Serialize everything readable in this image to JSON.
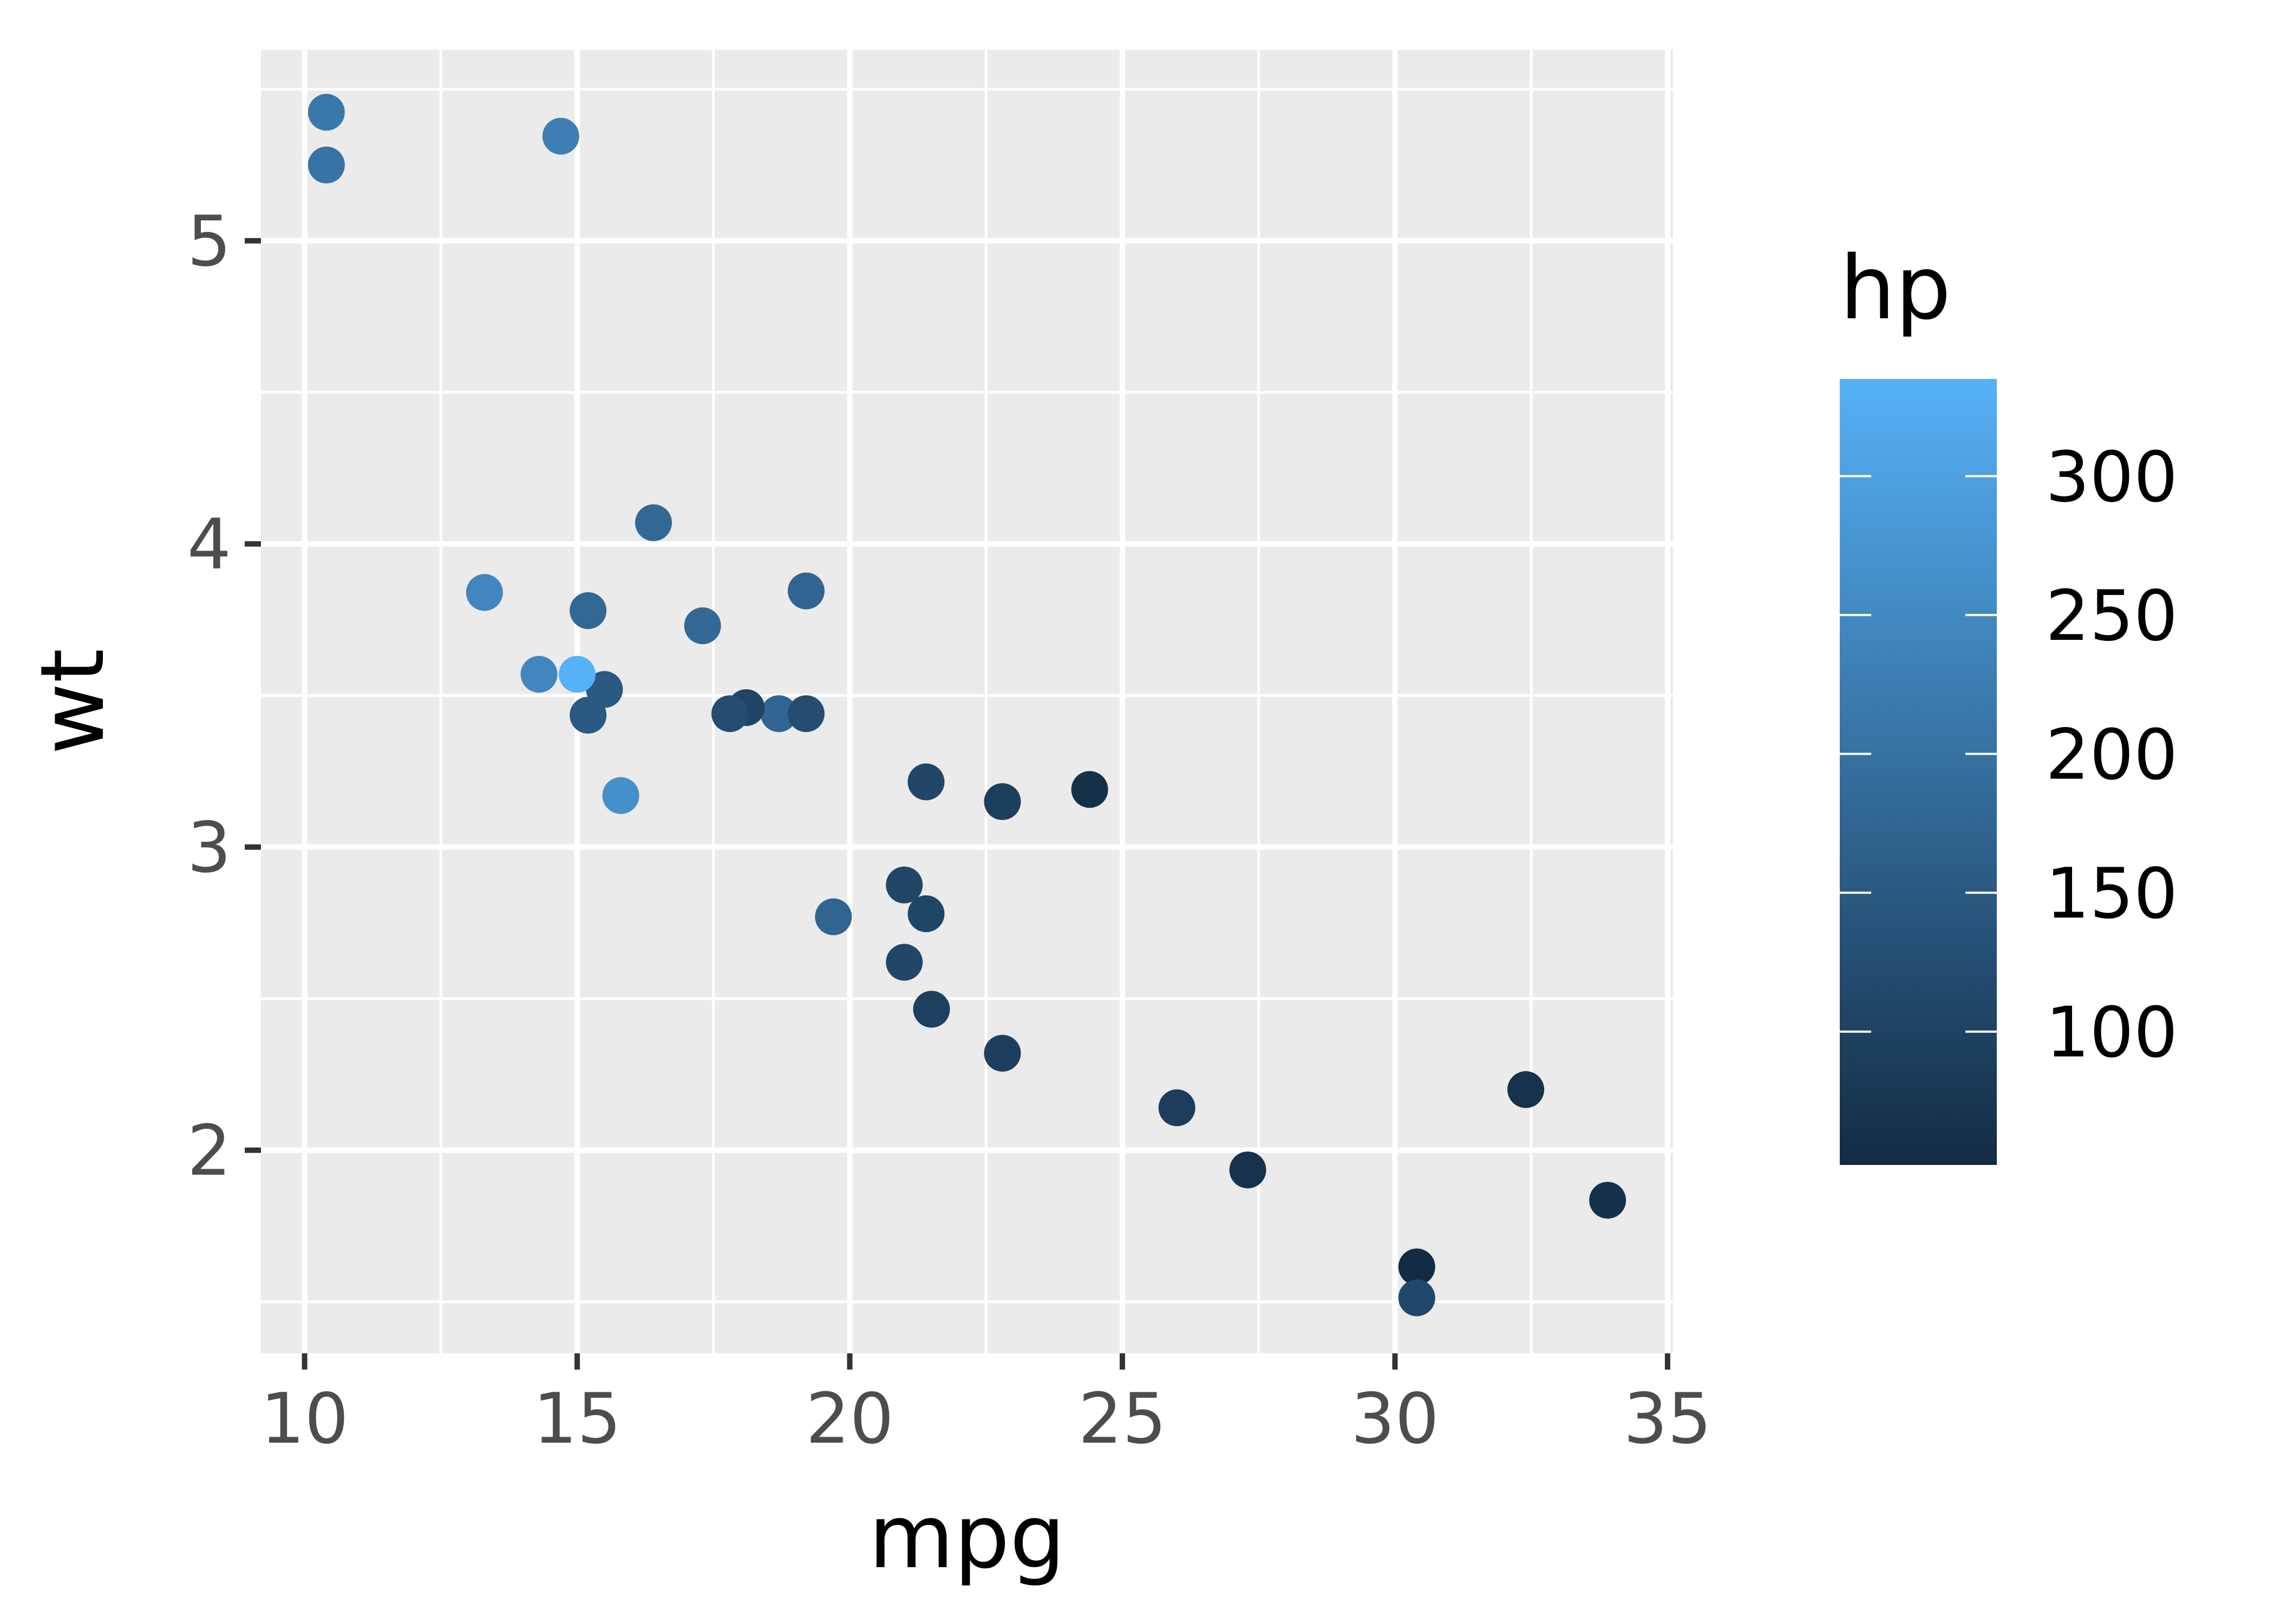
{
  "chart_data": {
    "type": "scatter",
    "title": "",
    "xlabel": "mpg",
    "ylabel": "wt",
    "xlim": [
      9.2,
      35.1
    ],
    "ylim": [
      1.33,
      5.63
    ],
    "x_ticks": [
      10,
      15,
      20,
      25,
      30,
      35
    ],
    "x_tick_labels": [
      "10",
      "15",
      "20",
      "25",
      "30",
      "35"
    ],
    "y_ticks": [
      2,
      3,
      4,
      5
    ],
    "y_tick_labels": [
      "2",
      "3",
      "4",
      "5"
    ],
    "grid": true,
    "background": "#EBEBEB",
    "legend": {
      "title": "hp",
      "position": "right",
      "type": "colorbar",
      "range": [
        52,
        335
      ],
      "ticks": [
        100,
        150,
        200,
        250,
        300
      ],
      "tick_labels": [
        "100",
        "150",
        "200",
        "250",
        "300"
      ],
      "color_low": "#132B43",
      "color_high": "#56B1F7"
    },
    "points": [
      {
        "x": 21.0,
        "y": 2.62,
        "hp": 110
      },
      {
        "x": 21.0,
        "y": 2.875,
        "hp": 110
      },
      {
        "x": 22.8,
        "y": 2.32,
        "hp": 93
      },
      {
        "x": 21.4,
        "y": 3.215,
        "hp": 110
      },
      {
        "x": 18.7,
        "y": 3.44,
        "hp": 175
      },
      {
        "x": 18.1,
        "y": 3.46,
        "hp": 105
      },
      {
        "x": 14.3,
        "y": 3.57,
        "hp": 245
      },
      {
        "x": 24.4,
        "y": 3.19,
        "hp": 62
      },
      {
        "x": 22.8,
        "y": 3.15,
        "hp": 95
      },
      {
        "x": 19.2,
        "y": 3.44,
        "hp": 123
      },
      {
        "x": 17.8,
        "y": 3.44,
        "hp": 123
      },
      {
        "x": 16.4,
        "y": 4.07,
        "hp": 180
      },
      {
        "x": 17.3,
        "y": 3.73,
        "hp": 180
      },
      {
        "x": 15.2,
        "y": 3.78,
        "hp": 180
      },
      {
        "x": 10.4,
        "y": 5.25,
        "hp": 205
      },
      {
        "x": 10.4,
        "y": 5.424,
        "hp": 215
      },
      {
        "x": 14.7,
        "y": 5.345,
        "hp": 230
      },
      {
        "x": 32.4,
        "y": 2.2,
        "hp": 66
      },
      {
        "x": 30.4,
        "y": 1.615,
        "hp": 52
      },
      {
        "x": 33.9,
        "y": 1.835,
        "hp": 65
      },
      {
        "x": 21.5,
        "y": 2.465,
        "hp": 97
      },
      {
        "x": 15.5,
        "y": 3.52,
        "hp": 150
      },
      {
        "x": 15.2,
        "y": 3.435,
        "hp": 150
      },
      {
        "x": 13.3,
        "y": 3.84,
        "hp": 245
      },
      {
        "x": 19.2,
        "y": 3.845,
        "hp": 175
      },
      {
        "x": 27.3,
        "y": 1.935,
        "hp": 66
      },
      {
        "x": 26.0,
        "y": 2.14,
        "hp": 91
      },
      {
        "x": 30.4,
        "y": 1.513,
        "hp": 113
      },
      {
        "x": 15.8,
        "y": 3.17,
        "hp": 264
      },
      {
        "x": 19.7,
        "y": 2.77,
        "hp": 175
      },
      {
        "x": 15.0,
        "y": 3.57,
        "hp": 335
      },
      {
        "x": 21.4,
        "y": 2.78,
        "hp": 109
      }
    ]
  }
}
